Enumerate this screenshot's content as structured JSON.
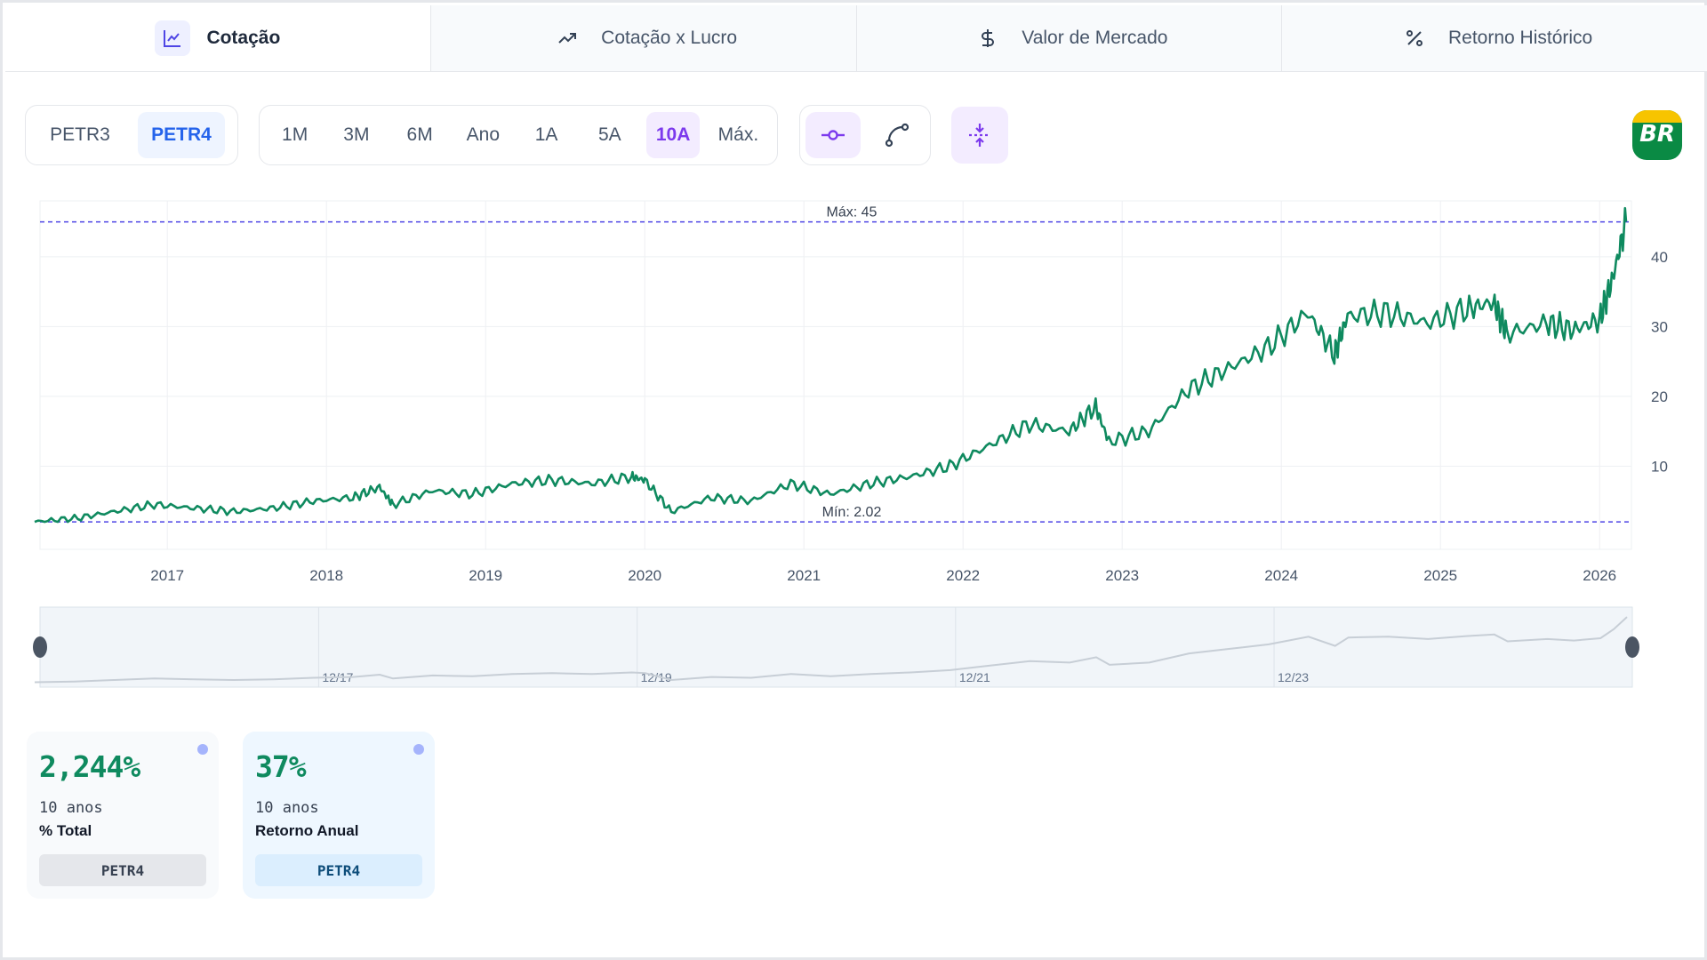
{
  "tabs": [
    {
      "label": "Cotação",
      "icon": "line-chart-icon"
    },
    {
      "label": "Cotação x Lucro",
      "icon": "trending-up-icon"
    },
    {
      "label": "Valor de Mercado",
      "icon": "dollar-icon"
    },
    {
      "label": "Retorno Histórico",
      "icon": "percent-icon"
    }
  ],
  "tickers": {
    "items": [
      "PETR3",
      "PETR4"
    ],
    "selected": "PETR4"
  },
  "periods": {
    "items": [
      "1M",
      "3M",
      "6M",
      "Ano",
      "1A",
      "5A",
      "10A",
      "Máx."
    ],
    "selected": "10A"
  },
  "chart_tools": {
    "items": [
      "line-mode-icon",
      "smooth-curve-icon"
    ],
    "active": "line-mode-icon"
  },
  "compress_button": {
    "icon": "compress-icon"
  },
  "logo": {
    "text": "BR",
    "colors": {
      "top": "#f7c400",
      "bottom": "#0a8a44"
    }
  },
  "colors": {
    "line": "#0f8a5f",
    "reference": "#4f46e5",
    "accent_purple": "#7c3aed",
    "accent_blue": "#2563eb"
  },
  "chart_data": {
    "type": "line",
    "x_ticks": [
      "2017",
      "2018",
      "2019",
      "2020",
      "2021",
      "2022",
      "2023",
      "2024",
      "2025",
      "2026"
    ],
    "y_ticks": [
      10,
      20,
      30,
      40
    ],
    "ylim": [
      0,
      48
    ],
    "grid": true,
    "max_label": "Máx: 45",
    "min_label": "Mín: 2.02",
    "max_value": 45,
    "min_value": 2.02,
    "series": [
      {
        "x": [
          "2016-03",
          "2016-06",
          "2016-09",
          "2016-12",
          "2017-03",
          "2017-06",
          "2017-09",
          "2017-12",
          "2018-03",
          "2018-05",
          "2018-06",
          "2018-09",
          "2018-12",
          "2019-03",
          "2019-06",
          "2019-09",
          "2019-12",
          "2020-01",
          "2020-03",
          "2020-06",
          "2020-09",
          "2020-12",
          "2021-03",
          "2021-06",
          "2021-09",
          "2021-12",
          "2022-03",
          "2022-06",
          "2022-09",
          "2022-11",
          "2022-12",
          "2023-03",
          "2023-06",
          "2023-09",
          "2023-12",
          "2024-03",
          "2024-05",
          "2024-06",
          "2024-09",
          "2024-12",
          "2025-03",
          "2025-05",
          "2025-06",
          "2025-09",
          "2025-11",
          "2026-01",
          "2026-02",
          "2026-03"
        ],
        "y": [
          2.02,
          2.5,
          3.5,
          4.5,
          4.0,
          3.5,
          4.0,
          5.0,
          5.5,
          7.0,
          4.5,
          6.5,
          6.0,
          7.5,
          8.0,
          7.5,
          8.5,
          8.0,
          3.5,
          5.5,
          5.0,
          7.5,
          6.0,
          7.5,
          8.5,
          10.0,
          13.0,
          16.0,
          15.0,
          18.5,
          13.5,
          15.0,
          21.0,
          24.0,
          27.0,
          32.0,
          26.0,
          31.5,
          32.0,
          30.5,
          32.5,
          33.5,
          29.0,
          30.5,
          29.5,
          31.0,
          37.0,
          45.0
        ]
      }
    ]
  },
  "navigator": {
    "labels": [
      "12/17",
      "12/19",
      "12/21",
      "12/23"
    ]
  },
  "cards": [
    {
      "value": "2,244%",
      "period": "10 anos",
      "label": "% Total",
      "ticker": "PETR4"
    },
    {
      "value": "37%",
      "period": "10 anos",
      "label": "Retorno Anual",
      "ticker": "PETR4"
    }
  ]
}
